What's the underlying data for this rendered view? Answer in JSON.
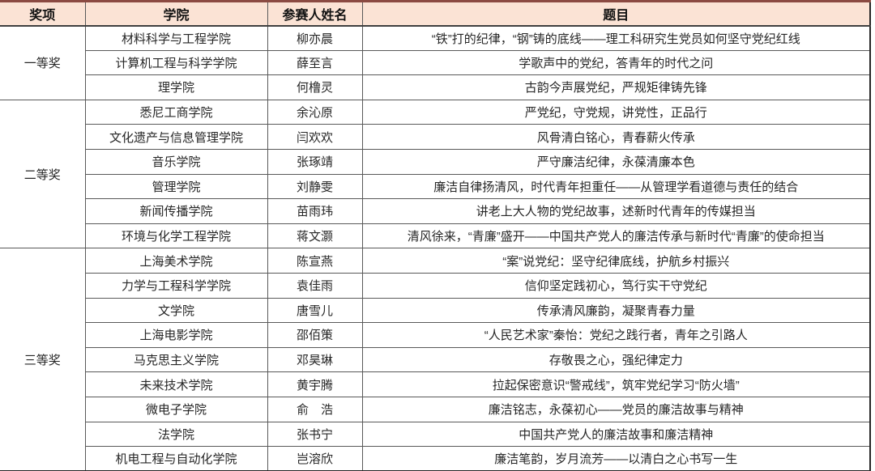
{
  "colors": {
    "header_bg": "#fbe3d5",
    "header_text": "#111111",
    "top_border": "#8b4a42",
    "grid_line": "#595959",
    "header_rule": "#3f3f3f",
    "outer_border": "#262626",
    "body_text": "#262626"
  },
  "table": {
    "columns": [
      "奖项",
      "学院",
      "参赛人姓名",
      "题目"
    ],
    "groups": [
      {
        "award": "一等奖",
        "rows": [
          {
            "college": "材料科学与工程学院",
            "name": "柳亦晨",
            "title": "“铁”打的纪律，“钢”铸的底线——理工科研究生党员如何坚守党纪红线"
          },
          {
            "college": "计算机工程与科学学院",
            "name": "薛至言",
            "title": "学歌声中的党纪，答青年的时代之问"
          },
          {
            "college": "理学院",
            "name": "何橹灵",
            "title": "古韵今声展党纪，严规矩律铸先锋"
          }
        ]
      },
      {
        "award": "二等奖",
        "rows": [
          {
            "college": "悉尼工商学院",
            "name": "余沁原",
            "title": "严党纪，守党规，讲党性，正品行"
          },
          {
            "college": "文化遗产与信息管理学院",
            "name": "闫欢欢",
            "title": "风骨清白铭心，青春薪火传承"
          },
          {
            "college": "音乐学院",
            "name": "张琢靖",
            "title": "严守廉洁纪律，永葆清廉本色"
          },
          {
            "college": "管理学院",
            "name": "刘静雯",
            "title": "廉洁自律扬清风，时代青年担重任——从管理学看道德与责任的结合"
          },
          {
            "college": "新闻传播学院",
            "name": "苗雨玮",
            "title": "讲老上大人物的党纪故事，述新时代青年的传媒担当"
          },
          {
            "college": "环境与化学工程学院",
            "name": "蒋文灏",
            "title": "清风徐来，“青廉”盛开——中国共产党人的廉洁传承与新时代“青廉”的使命担当"
          }
        ]
      },
      {
        "award": "三等奖",
        "rows": [
          {
            "college": "上海美术学院",
            "name": "陈宣燕",
            "title": "“案”说党纪：坚守纪律底线，护航乡村振兴"
          },
          {
            "college": "力学与工程科学学院",
            "name": "袁佳雨",
            "title": "信仰坚定践初心，笃行实干守党纪"
          },
          {
            "college": "文学院",
            "name": "唐雪儿",
            "title": "传承清风廉韵，凝聚青春力量"
          },
          {
            "college": "上海电影学院",
            "name": "邵佰策",
            "title": "“人民艺术家”秦怡：党纪之践行者，青年之引路人"
          },
          {
            "college": "马克思主义学院",
            "name": "邓昊琳",
            "title": "存敬畏之心，强纪律定力"
          },
          {
            "college": "未来技术学院",
            "name": "黄宇腾",
            "title": "拉起保密意识“警戒线”，筑牢党纪学习“防火墙”"
          },
          {
            "college": "微电子学院",
            "name": "俞　浩",
            "title": "廉洁铭志，永葆初心——党员的廉洁故事与精神"
          },
          {
            "college": "法学院",
            "name": "张书宁",
            "title": "中国共产党人的廉洁故事和廉洁精神"
          },
          {
            "college": "机电工程与自动化学院",
            "name": "岂溶欣",
            "title": "廉洁笔韵，岁月流芳——以清白之心书写一生"
          }
        ]
      }
    ]
  }
}
